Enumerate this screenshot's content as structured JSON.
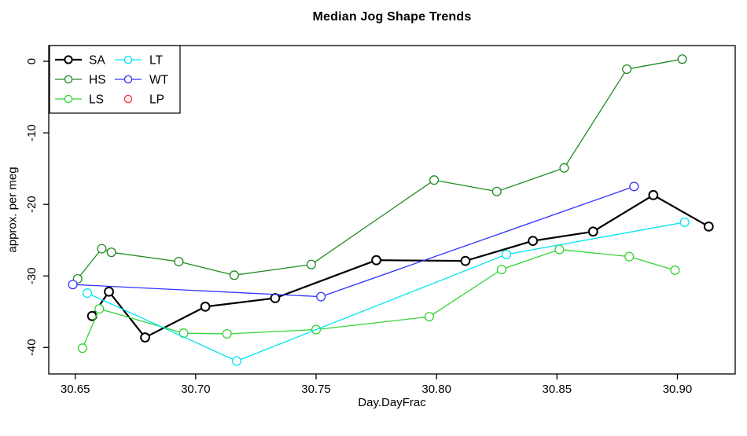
{
  "chart_data": {
    "type": "line",
    "title": "Median Jog Shape Trends",
    "xlabel": "Day.DayFrac",
    "ylabel": "approx. per meg",
    "xlim": [
      30.639,
      30.924
    ],
    "ylim": [
      -43.7,
      2.2
    ],
    "x_ticks": [
      30.65,
      30.7,
      30.75,
      30.8,
      30.85,
      30.9
    ],
    "x_tick_labels": [
      "30.65",
      "30.70",
      "30.75",
      "30.80",
      "30.85",
      "30.90"
    ],
    "y_ticks": [
      0,
      -10,
      -20,
      -30,
      -40
    ],
    "y_tick_labels": [
      "0",
      "-10",
      "-20",
      "-30",
      "-40"
    ],
    "grid": false,
    "legend_position": "top-left",
    "axis_color": "#000000",
    "series": [
      {
        "name": "SA",
        "color": "#000000",
        "line_width": 2.2,
        "marker": "circle",
        "has_line": true,
        "points": [
          [
            30.657,
            -35.6
          ],
          [
            30.664,
            -32.2
          ],
          [
            30.679,
            -38.6
          ],
          [
            30.704,
            -34.3
          ],
          [
            30.733,
            -33.1
          ],
          [
            30.775,
            -27.8
          ],
          [
            30.812,
            -27.9
          ],
          [
            30.84,
            -25.1
          ],
          [
            30.865,
            -23.8
          ],
          [
            30.89,
            -18.7
          ],
          [
            30.913,
            -23.1
          ]
        ]
      },
      {
        "name": "HS",
        "color": "#228B22",
        "line_width": 1.3,
        "marker": "circle",
        "has_line": true,
        "points": [
          [
            30.651,
            -30.4
          ],
          [
            30.661,
            -26.2
          ],
          [
            30.665,
            -26.7
          ],
          [
            30.693,
            -28.0
          ],
          [
            30.716,
            -29.9
          ],
          [
            30.748,
            -28.4
          ],
          [
            30.799,
            -16.6
          ],
          [
            30.825,
            -18.2
          ],
          [
            30.853,
            -14.9
          ],
          [
            30.879,
            -1.1
          ],
          [
            30.902,
            0.3
          ]
        ]
      },
      {
        "name": "LS",
        "color": "#33D433",
        "line_width": 1.3,
        "marker": "circle",
        "has_line": true,
        "points": [
          [
            30.653,
            -40.1
          ],
          [
            30.66,
            -34.6
          ],
          [
            30.695,
            -38.0
          ],
          [
            30.713,
            -38.1
          ],
          [
            30.75,
            -37.5
          ],
          [
            30.797,
            -35.7
          ],
          [
            30.827,
            -29.1
          ],
          [
            30.851,
            -26.3
          ],
          [
            30.88,
            -27.3
          ],
          [
            30.899,
            -29.2
          ]
        ]
      },
      {
        "name": "LT",
        "color": "#00E5EE",
        "line_width": 1.3,
        "marker": "circle",
        "has_line": true,
        "points": [
          [
            30.655,
            -32.4
          ],
          [
            30.717,
            -41.9
          ],
          [
            30.829,
            -27.0
          ],
          [
            30.903,
            -22.5
          ]
        ]
      },
      {
        "name": "WT",
        "color": "#3333FF",
        "line_width": 1.3,
        "marker": "circle",
        "has_line": true,
        "points": [
          [
            30.649,
            -31.2
          ],
          [
            30.752,
            -32.9
          ],
          [
            30.882,
            -17.5
          ]
        ]
      },
      {
        "name": "LP",
        "color": "#FF3333",
        "line_width": 1.3,
        "marker": "circle",
        "has_line": false,
        "points": []
      }
    ],
    "legend": {
      "columns": [
        [
          "SA",
          "HS",
          "LS"
        ],
        [
          "LT",
          "WT",
          "LP"
        ]
      ]
    }
  }
}
